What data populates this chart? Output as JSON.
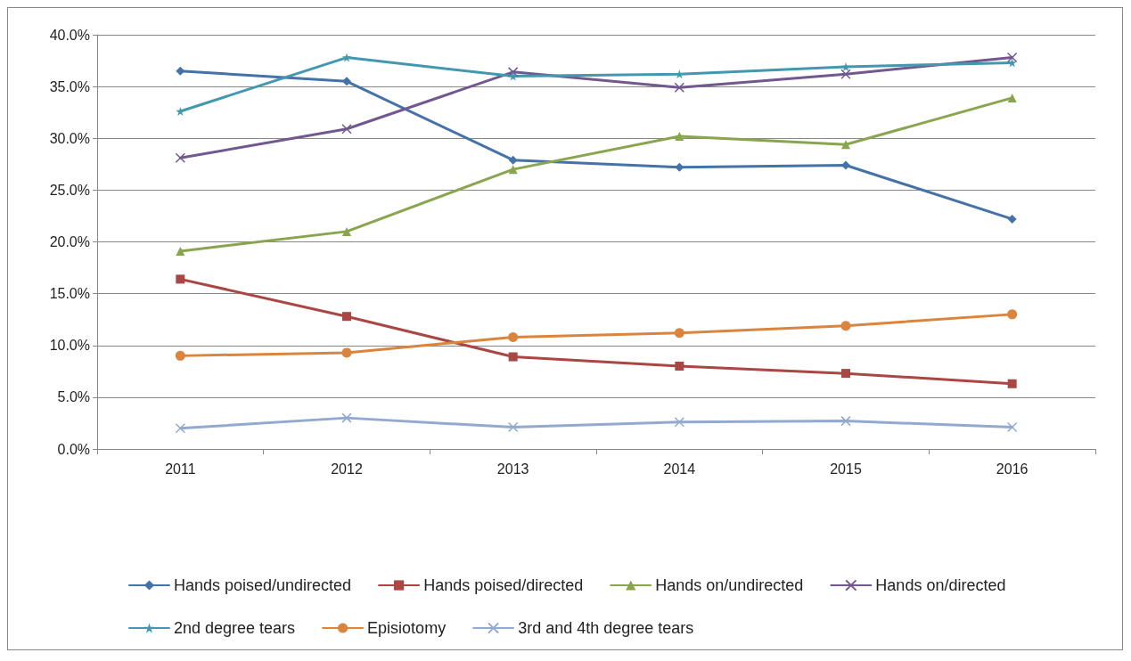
{
  "chart_data": {
    "type": "line",
    "categories": [
      "2011",
      "2012",
      "2013",
      "2014",
      "2015",
      "2016"
    ],
    "series": [
      {
        "name": "Hands poised/undirected",
        "color": "#4572a7",
        "marker": "diamond",
        "values": [
          36.5,
          35.5,
          27.9,
          27.2,
          27.4,
          22.2
        ]
      },
      {
        "name": "Hands poised/directed",
        "color": "#aa4643",
        "marker": "square",
        "values": [
          16.4,
          12.8,
          8.9,
          8.0,
          7.3,
          6.3
        ]
      },
      {
        "name": "Hands on/undirected",
        "color": "#89a54e",
        "marker": "triangle",
        "values": [
          19.1,
          21.0,
          27.0,
          30.2,
          29.4,
          33.9
        ]
      },
      {
        "name": "Hands on/directed",
        "color": "#71588f",
        "marker": "cross",
        "values": [
          28.1,
          30.9,
          36.4,
          34.9,
          36.2,
          37.8
        ]
      },
      {
        "name": "2nd degree tears",
        "color": "#4198af",
        "marker": "star",
        "values": [
          32.6,
          37.8,
          36.0,
          36.2,
          36.9,
          37.3
        ]
      },
      {
        "name": "Episiotomy",
        "color": "#db843d",
        "marker": "circle",
        "values": [
          9.0,
          9.3,
          10.8,
          11.2,
          11.9,
          13.0
        ]
      },
      {
        "name": "3rd and 4th degree tears",
        "color": "#93a9cf",
        "marker": "cross",
        "values": [
          2.0,
          3.0,
          2.1,
          2.6,
          2.7,
          2.1
        ]
      }
    ],
    "ylim": [
      0,
      40
    ],
    "yticks": [
      {
        "value": 0,
        "label": "0.0%"
      },
      {
        "value": 5,
        "label": "5.0%"
      },
      {
        "value": 10,
        "label": "10.0%"
      },
      {
        "value": 15,
        "label": "15.0%"
      },
      {
        "value": 20,
        "label": "20.0%"
      },
      {
        "value": 25,
        "label": "25.0%"
      },
      {
        "value": 30,
        "label": "30.0%"
      },
      {
        "value": 35,
        "label": "35.0%"
      },
      {
        "value": 40,
        "label": "40.0%"
      }
    ],
    "grid": "y",
    "legend": "bottom",
    "line_style": "solid"
  }
}
